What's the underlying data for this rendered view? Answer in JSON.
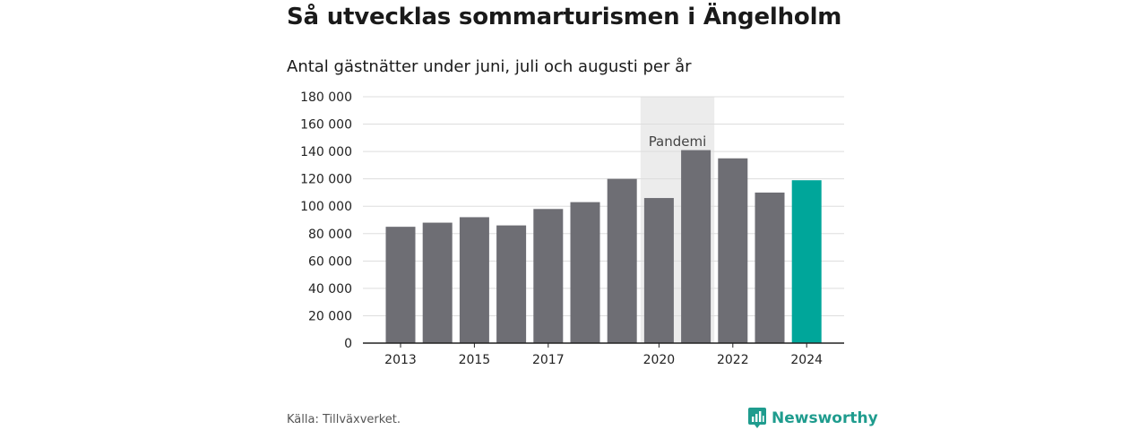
{
  "header": {
    "title": "Så utvecklas sommarturismen i Ängelholm",
    "subtitle": "Antal gästnätter under juni, juli och augusti per år"
  },
  "footer": {
    "source": "Källa: Tillväxverket.",
    "brand": "Newsworthy",
    "brand_icon": "bar-chart-speech-bubble-icon"
  },
  "colors": {
    "bar": "#6e6e74",
    "highlight": "#00a69a",
    "pandemic_band": "#ececec",
    "grid": "#dddddd",
    "axis": "#222222",
    "brand": "#1f9c8e"
  },
  "chart_data": {
    "type": "bar",
    "categories": [
      "2013",
      "2014",
      "2015",
      "2016",
      "2017",
      "2018",
      "2019",
      "2020",
      "2021",
      "2022",
      "2023",
      "2024"
    ],
    "values": [
      85000,
      88000,
      92000,
      86000,
      98000,
      103000,
      120000,
      106000,
      141000,
      135000,
      110000,
      119000
    ],
    "highlight_category": "2024",
    "x_tick_labels": [
      "2013",
      "2015",
      "2017",
      "2020",
      "2022",
      "2024"
    ],
    "y_tick_labels": [
      "0",
      "20 000",
      "40 000",
      "60 000",
      "80 000",
      "100 000",
      "120 000",
      "140 000",
      "160 000",
      "180 000"
    ],
    "y_ticks": [
      0,
      20000,
      40000,
      60000,
      80000,
      100000,
      120000,
      140000,
      160000,
      180000
    ],
    "ylim": [
      0,
      180000
    ],
    "grid": true,
    "annotations": [
      {
        "text": "Pandemi",
        "x_from": "2020",
        "x_to": "2021",
        "type": "shaded-band"
      }
    ]
  }
}
